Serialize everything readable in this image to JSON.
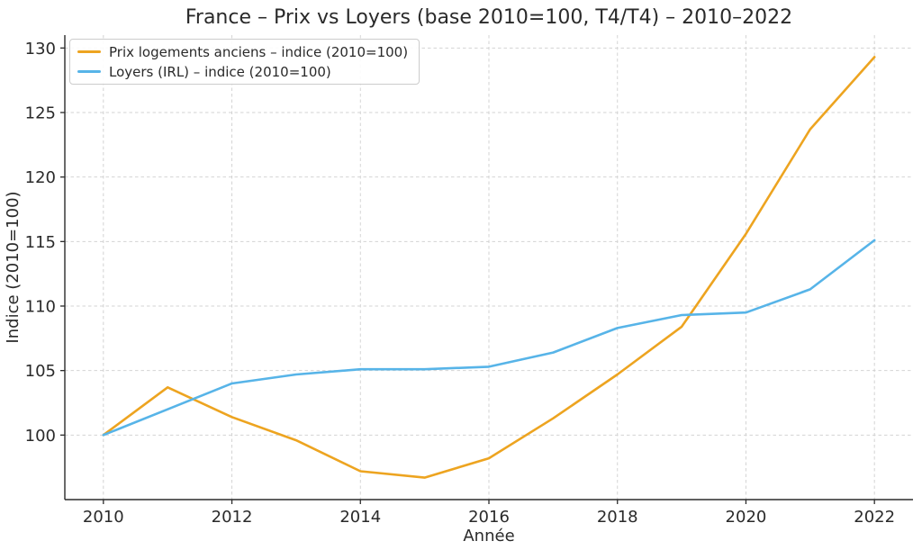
{
  "figure": {
    "background": "#ffffff"
  },
  "chart_data": {
    "type": "line",
    "title": "France – Prix vs Loyers (base 2010=100, T4/T4) – 2010–2022",
    "xlabel": "Année",
    "ylabel": "Indice (2010=100)",
    "x": [
      2010,
      2011,
      2012,
      2013,
      2014,
      2015,
      2016,
      2017,
      2018,
      2019,
      2020,
      2021,
      2022
    ],
    "series": [
      {
        "name": "Prix logements anciens – indice (2010=100)",
        "color": "#EDA420",
        "values": [
          100.0,
          103.7,
          101.4,
          99.6,
          97.2,
          96.7,
          98.2,
          101.3,
          104.7,
          108.4,
          115.6,
          123.7,
          129.3
        ]
      },
      {
        "name": "Loyers (IRL) – indice (2010=100)",
        "color": "#57B4E8",
        "values": [
          100.0,
          102.0,
          104.0,
          104.7,
          105.1,
          105.1,
          105.3,
          106.4,
          108.3,
          109.3,
          109.5,
          111.3,
          115.1
        ]
      }
    ],
    "xticks": [
      2010,
      2012,
      2014,
      2016,
      2018,
      2020,
      2022
    ],
    "yticks": [
      100,
      105,
      110,
      115,
      120,
      125,
      130
    ],
    "xlim": [
      2009.4,
      2022.6
    ],
    "ylim": [
      95.0,
      131.0
    ],
    "grid": "dashed-both",
    "legend_position": "upper-left",
    "line_width": 2.6
  },
  "colors": {
    "text": "#2a2a2a",
    "spine": "#2b2b2b",
    "grid": "#cfcfcf",
    "legend_border": "#cccccc"
  }
}
